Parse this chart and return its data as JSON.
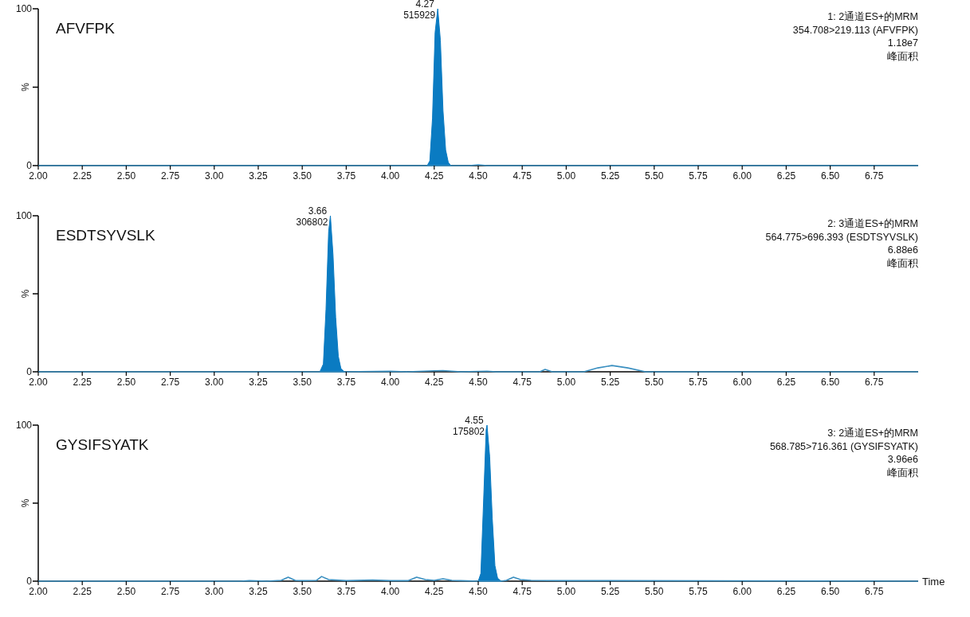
{
  "chart_data": [
    {
      "type": "line",
      "title": "AFVFPK",
      "ylabel": "%",
      "xlim": [
        2.0,
        7.0
      ],
      "ylim": [
        0,
        100
      ],
      "xticks": [
        {
          "value": 2,
          "label": "2.00"
        },
        {
          "value": 2.25,
          "label": "2.25"
        },
        {
          "value": 2.5,
          "label": "2.50"
        },
        {
          "value": 2.75,
          "label": "2.75"
        },
        {
          "value": 3,
          "label": "3.00"
        },
        {
          "value": 3.25,
          "label": "3.25"
        },
        {
          "value": 3.5,
          "label": "3.50"
        },
        {
          "value": 3.75,
          "label": "3.75"
        },
        {
          "value": 4,
          "label": "4.00"
        },
        {
          "value": 4.25,
          "label": "4.25"
        },
        {
          "value": 4.5,
          "label": "4.50"
        },
        {
          "value": 4.75,
          "label": "4.75"
        },
        {
          "value": 5,
          "label": "5.00"
        },
        {
          "value": 5.25,
          "label": "5.25"
        },
        {
          "value": 5.5,
          "label": "5.50"
        },
        {
          "value": 5.75,
          "label": "5.75"
        },
        {
          "value": 6,
          "label": "6.00"
        },
        {
          "value": 6.25,
          "label": "6.25"
        },
        {
          "value": 6.5,
          "label": "6.50"
        },
        {
          "value": 6.75,
          "label": "6.75"
        }
      ],
      "yticks": [
        {
          "value": 0,
          "label": "0"
        },
        {
          "value": 50,
          "label": null
        },
        {
          "value": 100,
          "label": "100"
        }
      ],
      "series": [
        {
          "type": "area",
          "color": "#0a7bc2",
          "x": [
            4.21,
            4.225,
            4.24,
            4.255,
            4.27,
            4.285,
            4.3,
            4.315,
            4.33,
            4.345
          ],
          "values": [
            0,
            3,
            30,
            85,
            100,
            80,
            35,
            10,
            2,
            0
          ]
        },
        {
          "type": "line",
          "color": "#3a8fc0",
          "x": [
            2.0,
            4.21,
            4.345,
            4.45,
            4.5,
            4.55,
            7.0
          ],
          "values": [
            0,
            0,
            0,
            0,
            0.5,
            0,
            0
          ]
        }
      ],
      "annotations": [
        {
          "text": "4.27",
          "x": 4.27,
          "y": 100
        },
        {
          "text": "515929",
          "x": 4.27,
          "y": 100
        },
        "1: 2通道ES+的MRM",
        "354.708>219.113 (AFVFPK)",
        "1.18e7",
        "峰面积"
      ]
    },
    {
      "type": "line",
      "title": "ESDTSYVSLK",
      "ylabel": "%",
      "xlim": [
        2.0,
        7.0
      ],
      "ylim": [
        0,
        100
      ],
      "xticks": [
        {
          "value": 2,
          "label": "2.00"
        },
        {
          "value": 2.25,
          "label": "2.25"
        },
        {
          "value": 2.5,
          "label": "2.50"
        },
        {
          "value": 2.75,
          "label": "2.75"
        },
        {
          "value": 3,
          "label": "3.00"
        },
        {
          "value": 3.25,
          "label": "3.25"
        },
        {
          "value": 3.5,
          "label": "3.50"
        },
        {
          "value": 3.75,
          "label": "3.75"
        },
        {
          "value": 4,
          "label": "4.00"
        },
        {
          "value": 4.25,
          "label": "4.25"
        },
        {
          "value": 4.5,
          "label": "4.50"
        },
        {
          "value": 4.75,
          "label": "4.75"
        },
        {
          "value": 5,
          "label": "5.00"
        },
        {
          "value": 5.25,
          "label": "5.25"
        },
        {
          "value": 5.5,
          "label": "5.50"
        },
        {
          "value": 5.75,
          "label": "5.75"
        },
        {
          "value": 6,
          "label": "6.00"
        },
        {
          "value": 6.25,
          "label": "6.25"
        },
        {
          "value": 6.5,
          "label": "6.50"
        },
        {
          "value": 6.75,
          "label": "6.75"
        }
      ],
      "yticks": [
        {
          "value": 0,
          "label": "0"
        },
        {
          "value": 50,
          "label": null
        },
        {
          "value": 100,
          "label": "100"
        }
      ],
      "series": [
        {
          "type": "area",
          "color": "#0a7bc2",
          "x": [
            3.6,
            3.62,
            3.635,
            3.65,
            3.66,
            3.675,
            3.69,
            3.705,
            3.72,
            3.74
          ],
          "values": [
            0,
            5,
            40,
            90,
            100,
            75,
            35,
            10,
            2,
            0
          ]
        },
        {
          "type": "line",
          "color": "#3a8fc0",
          "x": [
            2.0,
            3.6,
            3.74,
            4.0,
            4.1,
            4.25,
            4.3,
            4.4,
            4.55,
            4.6,
            4.85,
            4.88,
            4.92,
            5.1,
            5.18,
            5.26,
            5.35,
            5.45,
            7.0
          ],
          "values": [
            0,
            0,
            0,
            0.3,
            0,
            0.6,
            0.8,
            0,
            0.4,
            0,
            0,
            1.5,
            0,
            0,
            2.5,
            4,
            2.5,
            0,
            0
          ]
        }
      ],
      "annotations": [
        {
          "text": "3.66",
          "x": 3.66,
          "y": 100
        },
        {
          "text": "306802",
          "x": 3.66,
          "y": 100
        },
        "2: 3通道ES+的MRM",
        "564.775>696.393 (ESDTSYVSLK)",
        "6.88e6",
        "峰面积"
      ]
    },
    {
      "type": "line",
      "title": "GYSIFSYATK",
      "ylabel": "%",
      "xlabel": "Time",
      "xlim": [
        2.0,
        7.0
      ],
      "ylim": [
        0,
        100
      ],
      "xticks": [
        {
          "value": 2,
          "label": "2.00"
        },
        {
          "value": 2.25,
          "label": "2.25"
        },
        {
          "value": 2.5,
          "label": "2.50"
        },
        {
          "value": 2.75,
          "label": "2.75"
        },
        {
          "value": 3,
          "label": "3.00"
        },
        {
          "value": 3.25,
          "label": "3.25"
        },
        {
          "value": 3.5,
          "label": "3.50"
        },
        {
          "value": 3.75,
          "label": "3.75"
        },
        {
          "value": 4,
          "label": "4.00"
        },
        {
          "value": 4.25,
          "label": "4.25"
        },
        {
          "value": 4.5,
          "label": "4.50"
        },
        {
          "value": 4.75,
          "label": "4.75"
        },
        {
          "value": 5,
          "label": "5.00"
        },
        {
          "value": 5.25,
          "label": "5.25"
        },
        {
          "value": 5.5,
          "label": "5.50"
        },
        {
          "value": 5.75,
          "label": "5.75"
        },
        {
          "value": 6,
          "label": "6.00"
        },
        {
          "value": 6.25,
          "label": "6.25"
        },
        {
          "value": 6.5,
          "label": "6.50"
        },
        {
          "value": 6.75,
          "label": "6.75"
        }
      ],
      "yticks": [
        {
          "value": 0,
          "label": "0"
        },
        {
          "value": 50,
          "label": null
        },
        {
          "value": 100,
          "label": "100"
        }
      ],
      "series": [
        {
          "type": "area",
          "color": "#0a7bc2",
          "x": [
            4.5,
            4.515,
            4.53,
            4.545,
            4.55,
            4.565,
            4.58,
            4.595,
            4.61,
            4.63
          ],
          "values": [
            0,
            5,
            50,
            97,
            100,
            80,
            40,
            10,
            2,
            0
          ]
        },
        {
          "type": "line",
          "color": "#3a8fc0",
          "x": [
            2.0,
            3.15,
            3.2,
            3.3,
            3.38,
            3.42,
            3.46,
            3.5,
            3.58,
            3.61,
            3.65,
            3.75,
            3.9,
            4.0,
            4.1,
            4.15,
            4.2,
            4.25,
            4.3,
            4.35,
            4.4,
            4.5,
            4.63,
            4.66,
            4.7,
            4.74,
            4.8,
            5.0,
            5.2,
            7.0
          ],
          "values": [
            0,
            0,
            0.3,
            0,
            0.5,
            2.5,
            0.5,
            0.3,
            0.5,
            3,
            1,
            0.3,
            0.8,
            0.3,
            0.3,
            2.5,
            1,
            0.5,
            1.5,
            0.5,
            0.3,
            0,
            0,
            0.5,
            2.5,
            1,
            0.5,
            0.3,
            0.3,
            0
          ]
        }
      ],
      "annotations": [
        {
          "text": "4.55",
          "x": 4.55,
          "y": 100
        },
        {
          "text": "175802",
          "x": 4.55,
          "y": 100
        },
        "3: 2通道ES+的MRM",
        "568.785>716.361 (GYSIFSYATK)",
        "3.96e6",
        "峰面积"
      ]
    }
  ]
}
